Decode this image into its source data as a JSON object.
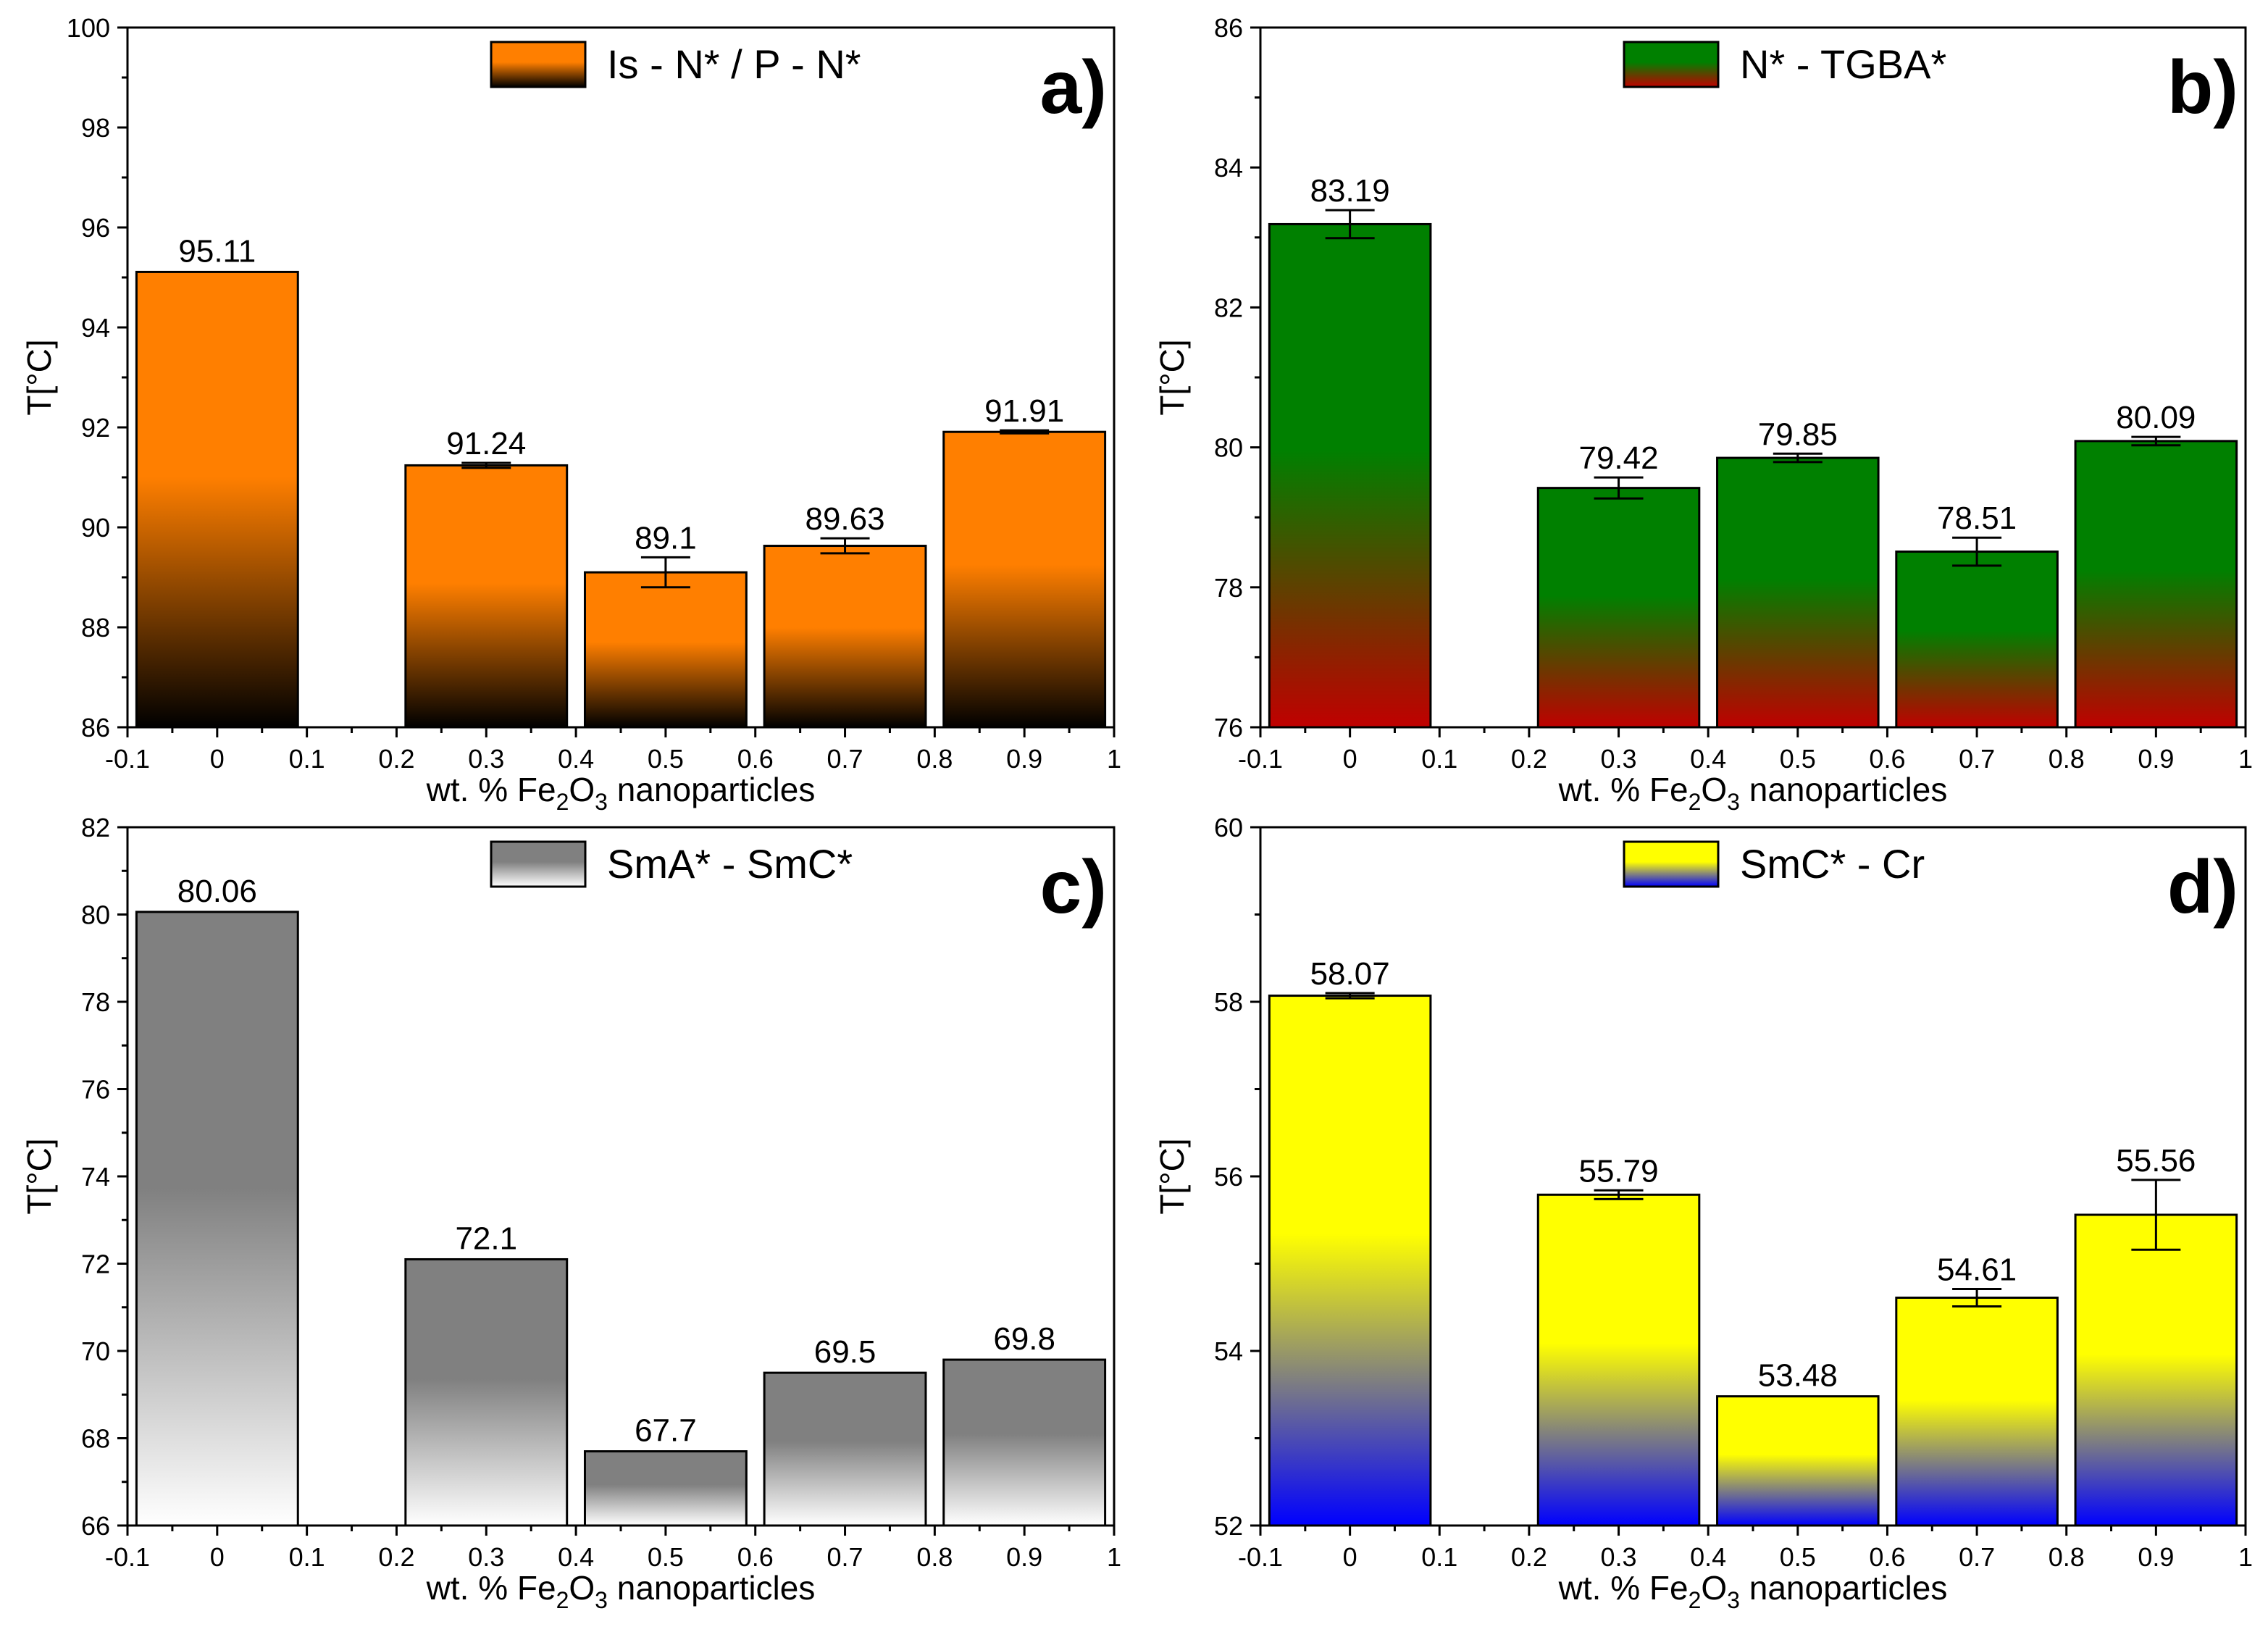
{
  "chart_data": [
    {
      "type": "bar",
      "panel_label": "a)",
      "legend": "Is - N* / P - N*",
      "gradient": {
        "top": "#ff7f00",
        "bottom": "#000000"
      },
      "x": [
        0,
        0.3,
        0.5,
        0.7,
        0.9
      ],
      "values": [
        95.11,
        91.24,
        89.1,
        89.63,
        91.91
      ],
      "value_labels": [
        "95.11",
        "91.24",
        "89.1",
        "89.63",
        "91.91"
      ],
      "errors": [
        0,
        0.05,
        0.3,
        0.15,
        0.03
      ],
      "ylim": [
        86,
        100
      ],
      "yticks": [
        86,
        88,
        90,
        92,
        94,
        96,
        98,
        100
      ],
      "xlim": [
        -0.1,
        1
      ],
      "xticks": [
        "-0.1",
        "0",
        "0.1",
        "0.2",
        "0.3",
        "0.4",
        "0.5",
        "0.6",
        "0.7",
        "0.8",
        "0.9",
        "1"
      ],
      "ylabel": "T[°C]",
      "xlabel": {
        "prefix": "wt. % Fe",
        "sub1": "2",
        "mid": "O",
        "sub2": "3",
        "suffix": " nanoparticles"
      }
    },
    {
      "type": "bar",
      "panel_label": "b)",
      "legend": "N* - TGBA*",
      "gradient": {
        "top": "#008000",
        "bottom": "#c00000"
      },
      "x": [
        0,
        0.3,
        0.5,
        0.7,
        0.9
      ],
      "values": [
        83.19,
        79.42,
        79.85,
        78.51,
        80.09
      ],
      "value_labels": [
        "83.19",
        "79.42",
        "79.85",
        "78.51",
        "80.09"
      ],
      "errors": [
        0.2,
        0.15,
        0.06,
        0.2,
        0.06
      ],
      "ylim": [
        76,
        86
      ],
      "yticks": [
        76,
        78,
        80,
        82,
        84,
        86
      ],
      "xlim": [
        -0.1,
        1
      ],
      "xticks": [
        "-0.1",
        "0",
        "0.1",
        "0.2",
        "0.3",
        "0.4",
        "0.5",
        "0.6",
        "0.7",
        "0.8",
        "0.9",
        "1"
      ],
      "ylabel": "T[°C]",
      "xlabel": {
        "prefix": "wt. % Fe",
        "sub1": "2",
        "mid": "O",
        "sub2": "3",
        "suffix": " nanoparticles"
      }
    },
    {
      "type": "bar",
      "panel_label": "c)",
      "legend": "SmA* - SmC*",
      "gradient": {
        "top": "#808080",
        "bottom": "#ffffff"
      },
      "x": [
        0,
        0.3,
        0.5,
        0.7,
        0.9
      ],
      "values": [
        80.06,
        72.1,
        67.7,
        69.5,
        69.8
      ],
      "value_labels": [
        "80.06",
        "72.1",
        "67.7",
        "69.5",
        "69.8"
      ],
      "errors": [
        0,
        0,
        0,
        0,
        0
      ],
      "ylim": [
        66,
        82
      ],
      "yticks": [
        66,
        68,
        70,
        72,
        74,
        76,
        78,
        80,
        82
      ],
      "xlim": [
        -0.1,
        1
      ],
      "xticks": [
        "-0.1",
        "0",
        "0.1",
        "0.2",
        "0.3",
        "0.4",
        "0.5",
        "0.6",
        "0.7",
        "0.8",
        "0.9",
        "1"
      ],
      "ylabel": "T[°C]",
      "xlabel": {
        "prefix": "wt. % Fe",
        "sub1": "2",
        "mid": "O",
        "sub2": "3",
        "suffix": " nanoparticles"
      }
    },
    {
      "type": "bar",
      "panel_label": "d)",
      "legend": "SmC* - Cr",
      "gradient": {
        "top": "#ffff00",
        "bottom": "#0000ff"
      },
      "x": [
        0,
        0.3,
        0.5,
        0.7,
        0.9
      ],
      "values": [
        58.07,
        55.79,
        53.48,
        54.61,
        55.56
      ],
      "value_labels": [
        "58.07",
        "55.79",
        "53.48",
        "54.61",
        "55.56"
      ],
      "errors": [
        0.03,
        0.05,
        0,
        0.1,
        0.4
      ],
      "ylim": [
        52,
        60
      ],
      "yticks": [
        52,
        54,
        56,
        58,
        60
      ],
      "xlim": [
        -0.1,
        1
      ],
      "xticks": [
        "-0.1",
        "0",
        "0.1",
        "0.2",
        "0.3",
        "0.4",
        "0.5",
        "0.6",
        "0.7",
        "0.8",
        "0.9",
        "1"
      ],
      "ylabel": "T[°C]",
      "xlabel": {
        "prefix": "wt. % Fe",
        "sub1": "2",
        "mid": "O",
        "sub2": "3",
        "suffix": " nanoparticles"
      }
    }
  ]
}
